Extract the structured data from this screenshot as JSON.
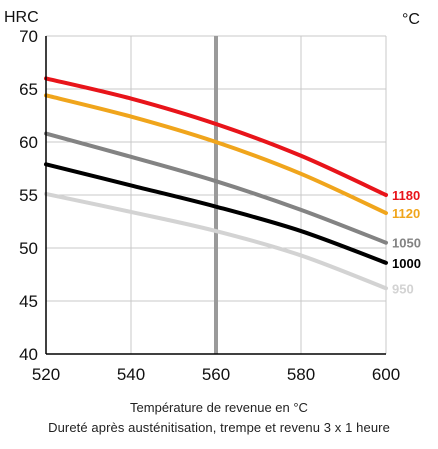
{
  "chart_data": {
    "type": "line",
    "ylabel": "HRC",
    "legend_title": "°C",
    "xlabel": "Température de revenue en °C",
    "caption": "Dureté après austénitisation, trempe et revenu 3 x 1 heure",
    "xlim": [
      520,
      600
    ],
    "ylim": [
      40,
      70
    ],
    "xticks": [
      520,
      540,
      560,
      580,
      600
    ],
    "yticks": [
      40,
      45,
      50,
      55,
      60,
      65,
      70
    ],
    "grid": true,
    "reference_line_x": 560,
    "x": [
      520,
      540,
      560,
      580,
      600
    ],
    "series": [
      {
        "name": "1180",
        "color": "#e8141a",
        "values": [
          66.0,
          64.1,
          61.7,
          58.7,
          55.0
        ]
      },
      {
        "name": "1120",
        "color": "#f0a51c",
        "values": [
          64.4,
          62.4,
          60.0,
          57.0,
          53.3
        ]
      },
      {
        "name": "1050",
        "color": "#838383",
        "values": [
          60.8,
          58.6,
          56.3,
          53.6,
          50.5
        ]
      },
      {
        "name": "1000",
        "color": "#000000",
        "values": [
          57.9,
          55.9,
          53.9,
          51.6,
          48.6
        ]
      },
      {
        "name": "950",
        "color": "#d3d3d3",
        "values": [
          55.1,
          53.4,
          51.6,
          49.3,
          46.2
        ]
      }
    ]
  }
}
